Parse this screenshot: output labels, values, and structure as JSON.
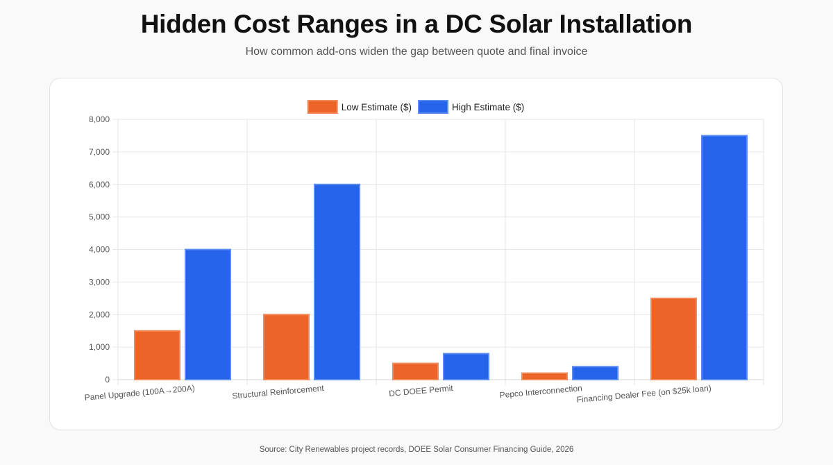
{
  "header": {
    "title": "Hidden Cost Ranges in a DC Solar Installation",
    "subtitle": "How common add-ons widen the gap between quote and final invoice"
  },
  "footer": {
    "source": "Source: City Renewables project records, DOEE Solar Consumer Financing Guide, 2026"
  },
  "colors": {
    "low": "#ec6428",
    "high": "#2563eb"
  },
  "chart_data": {
    "type": "bar",
    "title": "",
    "xlabel": "",
    "ylabel": "",
    "categories": [
      "Panel Upgrade (100A→200A)",
      "Structural Reinforcement",
      "DC DOEE Permit",
      "Pepco Interconnection",
      "Financing Dealer Fee (on $25k loan)"
    ],
    "series": [
      {
        "name": "Low Estimate ($)",
        "values": [
          1500,
          2000,
          500,
          200,
          2500
        ]
      },
      {
        "name": "High Estimate ($)",
        "values": [
          4000,
          6000,
          800,
          400,
          7500
        ]
      }
    ],
    "ylim": [
      0,
      8000
    ],
    "yticks": [
      "0",
      "1,000",
      "2,000",
      "3,000",
      "4,000",
      "5,000",
      "6,000",
      "7,000",
      "8,000"
    ],
    "grid": true,
    "legend": "top-center"
  }
}
